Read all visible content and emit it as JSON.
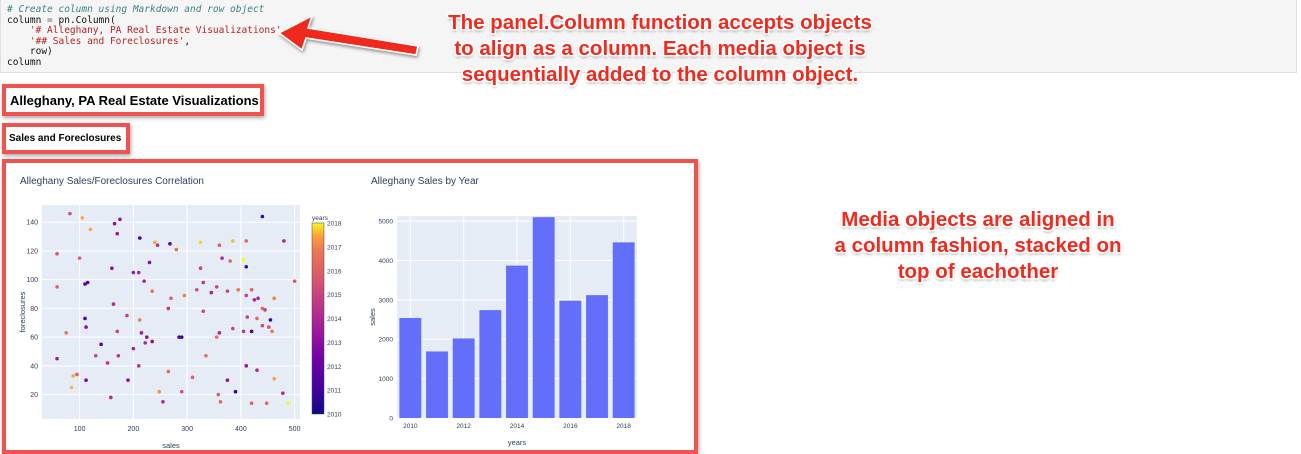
{
  "code_cell": {
    "lines": [
      [
        {
          "t": "# Create column using Markdown and row object",
          "c": "comment"
        }
      ],
      [
        {
          "t": "column ",
          "c": "plain"
        },
        {
          "t": "=",
          "c": "op"
        },
        {
          "t": " pn.Column(",
          "c": "plain"
        }
      ],
      [
        {
          "t": "    ",
          "c": "plain"
        },
        {
          "t": "'# Alleghany, PA Real Estate Visualizations'",
          "c": "str"
        },
        {
          "t": ",",
          "c": "plain"
        }
      ],
      [
        {
          "t": "    ",
          "c": "plain"
        },
        {
          "t": "'## Sales and Foreclosures'",
          "c": "str"
        },
        {
          "t": ",",
          "c": "plain"
        }
      ],
      [
        {
          "t": "    row)",
          "c": "plain"
        }
      ],
      [
        {
          "t": "column",
          "c": "plain"
        }
      ]
    ]
  },
  "annotations": {
    "callout_top": [
      "The panel.Column function accepts objects",
      "to align as a column. Each media object is",
      "sequentially added to the column object."
    ],
    "callout_right": [
      "Media objects are aligned in",
      "a column fashion, stacked on",
      "top of eachother"
    ],
    "accent_color": "#ef2a1e",
    "box_color": "#ef5350"
  },
  "markdown": {
    "h1": "Alleghany, PA Real Estate Visualizations",
    "h2": "Sales and Foreclosures"
  },
  "chart_data": [
    {
      "type": "scatter",
      "title": "Alleghany Sales/Foreclosures Correlation",
      "xlabel": "sales",
      "ylabel": "foreclosures",
      "xlim": [
        30,
        510
      ],
      "ylim": [
        3,
        152
      ],
      "xticks": [
        100,
        200,
        300,
        400,
        500
      ],
      "yticks": [
        20,
        40,
        60,
        80,
        100,
        120,
        140
      ],
      "colorbar": {
        "title": "years",
        "range": [
          2010,
          2018
        ],
        "ticks": [
          2010,
          2011,
          2012,
          2013,
          2014,
          2015,
          2016,
          2017,
          2018
        ]
      },
      "grid": true,
      "points": [
        {
          "x": 82,
          "y": 146,
          "year": 2015.5
        },
        {
          "x": 105,
          "y": 143,
          "year": 2017.5
        },
        {
          "x": 120,
          "y": 135,
          "year": 2017.5
        },
        {
          "x": 165,
          "y": 139,
          "year": 2013
        },
        {
          "x": 175,
          "y": 142,
          "year": 2013.3
        },
        {
          "x": 170,
          "y": 132,
          "year": 2013.5
        },
        {
          "x": 212,
          "y": 129,
          "year": 2011
        },
        {
          "x": 240,
          "y": 126,
          "year": 2017.5
        },
        {
          "x": 245,
          "y": 124,
          "year": 2014.5
        },
        {
          "x": 268,
          "y": 125,
          "year": 2011.5
        },
        {
          "x": 280,
          "y": 121,
          "year": 2016.5
        },
        {
          "x": 325,
          "y": 126,
          "year": 2017.8
        },
        {
          "x": 360,
          "y": 124,
          "year": 2016
        },
        {
          "x": 385,
          "y": 127,
          "year": 2017.6
        },
        {
          "x": 410,
          "y": 127,
          "year": 2016.3
        },
        {
          "x": 440,
          "y": 144,
          "year": 2011
        },
        {
          "x": 480,
          "y": 127,
          "year": 2014
        },
        {
          "x": 58,
          "y": 118,
          "year": 2015.7
        },
        {
          "x": 100,
          "y": 115,
          "year": 2016
        },
        {
          "x": 160,
          "y": 108,
          "year": 2013
        },
        {
          "x": 200,
          "y": 105,
          "year": 2013.5
        },
        {
          "x": 210,
          "y": 105,
          "year": 2014
        },
        {
          "x": 230,
          "y": 112,
          "year": 2013
        },
        {
          "x": 325,
          "y": 108,
          "year": 2015
        },
        {
          "x": 365,
          "y": 115,
          "year": 2014
        },
        {
          "x": 380,
          "y": 113,
          "year": 2016.3
        },
        {
          "x": 405,
          "y": 114,
          "year": 2018
        },
        {
          "x": 410,
          "y": 109,
          "year": 2011
        },
        {
          "x": 58,
          "y": 95,
          "year": 2016
        },
        {
          "x": 110,
          "y": 97,
          "year": 2011.5
        },
        {
          "x": 115,
          "y": 98,
          "year": 2011.5
        },
        {
          "x": 220,
          "y": 99,
          "year": 2014
        },
        {
          "x": 235,
          "y": 92,
          "year": 2016.5
        },
        {
          "x": 270,
          "y": 87,
          "year": 2016
        },
        {
          "x": 295,
          "y": 89,
          "year": 2017
        },
        {
          "x": 318,
          "y": 93,
          "year": 2015.5
        },
        {
          "x": 330,
          "y": 98,
          "year": 2014.5
        },
        {
          "x": 345,
          "y": 91,
          "year": 2013.8
        },
        {
          "x": 355,
          "y": 95,
          "year": 2015
        },
        {
          "x": 375,
          "y": 92,
          "year": 2015
        },
        {
          "x": 395,
          "y": 93,
          "year": 2016.7
        },
        {
          "x": 410,
          "y": 89,
          "year": 2015
        },
        {
          "x": 420,
          "y": 93,
          "year": 2016
        },
        {
          "x": 425,
          "y": 86,
          "year": 2014
        },
        {
          "x": 432,
          "y": 87,
          "year": 2014
        },
        {
          "x": 440,
          "y": 80,
          "year": 2016.5
        },
        {
          "x": 445,
          "y": 79,
          "year": 2015
        },
        {
          "x": 462,
          "y": 87,
          "year": 2017
        },
        {
          "x": 500,
          "y": 99,
          "year": 2015.7
        },
        {
          "x": 163,
          "y": 83,
          "year": 2014
        },
        {
          "x": 265,
          "y": 80,
          "year": 2014.5
        },
        {
          "x": 330,
          "y": 78,
          "year": 2015
        },
        {
          "x": 110,
          "y": 73,
          "year": 2011.5
        },
        {
          "x": 112,
          "y": 67,
          "year": 2013
        },
        {
          "x": 170,
          "y": 64,
          "year": 2015
        },
        {
          "x": 188,
          "y": 75,
          "year": 2015
        },
        {
          "x": 212,
          "y": 72,
          "year": 2017
        },
        {
          "x": 215,
          "y": 63,
          "year": 2013.5
        },
        {
          "x": 225,
          "y": 60,
          "year": 2013
        },
        {
          "x": 285,
          "y": 60,
          "year": 2011
        },
        {
          "x": 290,
          "y": 60,
          "year": 2010.8
        },
        {
          "x": 355,
          "y": 60,
          "year": 2016.5
        },
        {
          "x": 360,
          "y": 63,
          "year": 2014
        },
        {
          "x": 385,
          "y": 66,
          "year": 2015
        },
        {
          "x": 405,
          "y": 64,
          "year": 2014.5
        },
        {
          "x": 412,
          "y": 74,
          "year": 2015
        },
        {
          "x": 420,
          "y": 64,
          "year": 2011
        },
        {
          "x": 430,
          "y": 73,
          "year": 2016.3
        },
        {
          "x": 440,
          "y": 68,
          "year": 2015
        },
        {
          "x": 452,
          "y": 67,
          "year": 2015.5
        },
        {
          "x": 455,
          "y": 72,
          "year": 2011
        },
        {
          "x": 458,
          "y": 64,
          "year": 2016.8
        },
        {
          "x": 58,
          "y": 45,
          "year": 2013.5
        },
        {
          "x": 88,
          "y": 33,
          "year": 2017.5
        },
        {
          "x": 95,
          "y": 34,
          "year": 2016
        },
        {
          "x": 112,
          "y": 30,
          "year": 2012.5
        },
        {
          "x": 130,
          "y": 47,
          "year": 2015
        },
        {
          "x": 140,
          "y": 55,
          "year": 2011.8
        },
        {
          "x": 152,
          "y": 42,
          "year": 2014.5
        },
        {
          "x": 158,
          "y": 18,
          "year": 2014.2
        },
        {
          "x": 172,
          "y": 47,
          "year": 2014.5
        },
        {
          "x": 190,
          "y": 30,
          "year": 2013
        },
        {
          "x": 200,
          "y": 52,
          "year": 2013.8
        },
        {
          "x": 210,
          "y": 40,
          "year": 2014.5
        },
        {
          "x": 222,
          "y": 56,
          "year": 2014
        },
        {
          "x": 235,
          "y": 57,
          "year": 2013
        },
        {
          "x": 248,
          "y": 22,
          "year": 2017.2
        },
        {
          "x": 255,
          "y": 15,
          "year": 2014
        },
        {
          "x": 265,
          "y": 36,
          "year": 2016.5
        },
        {
          "x": 290,
          "y": 22,
          "year": 2015.5
        },
        {
          "x": 310,
          "y": 32,
          "year": 2016
        },
        {
          "x": 335,
          "y": 47,
          "year": 2016.5
        },
        {
          "x": 358,
          "y": 20,
          "year": 2016
        },
        {
          "x": 362,
          "y": 15,
          "year": 2016.3
        },
        {
          "x": 375,
          "y": 30,
          "year": 2013
        },
        {
          "x": 390,
          "y": 22,
          "year": 2010.8
        },
        {
          "x": 410,
          "y": 40,
          "year": 2013.3
        },
        {
          "x": 420,
          "y": 14,
          "year": 2016
        },
        {
          "x": 430,
          "y": 37,
          "year": 2014
        },
        {
          "x": 448,
          "y": 14,
          "year": 2016.2
        },
        {
          "x": 462,
          "y": 31,
          "year": 2017.4
        },
        {
          "x": 478,
          "y": 21,
          "year": 2014
        },
        {
          "x": 488,
          "y": 14,
          "year": 2018
        },
        {
          "x": 85,
          "y": 25,
          "year": 2017.6
        },
        {
          "x": 75,
          "y": 63,
          "year": 2016.8
        }
      ]
    },
    {
      "type": "bar",
      "title": "Alleghany Sales by Year",
      "xlabel": "years",
      "ylabel": "sales",
      "categories": [
        2010,
        2011,
        2012,
        2013,
        2014,
        2015,
        2016,
        2017,
        2018
      ],
      "values": [
        2540,
        1690,
        2020,
        2740,
        3870,
        5100,
        2980,
        3120,
        4460
      ],
      "xticks": [
        2010,
        2012,
        2014,
        2016,
        2018
      ],
      "yticks": [
        0,
        1000,
        2000,
        3000,
        4000,
        5000
      ],
      "ylim": [
        0,
        5130
      ],
      "bar_color": "#636efa",
      "grid": true
    }
  ]
}
